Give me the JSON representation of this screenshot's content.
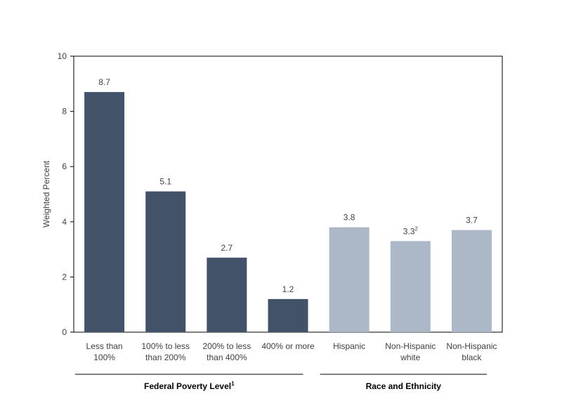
{
  "chart_data": {
    "type": "bar",
    "title": "",
    "ylabel": "Weighted Percent",
    "ylim": [
      0,
      10
    ],
    "yticks": [
      0,
      2,
      4,
      6,
      8,
      10
    ],
    "grid": false,
    "categories": [
      {
        "label_lines": [
          "Less than",
          "100%"
        ],
        "value": 8.7,
        "value_label": "8.7",
        "value_note": "",
        "group": 0
      },
      {
        "label_lines": [
          "100% to less",
          "than 200%"
        ],
        "value": 5.1,
        "value_label": "5.1",
        "value_note": "",
        "group": 0
      },
      {
        "label_lines": [
          "200% to less",
          "than 400%"
        ],
        "value": 2.7,
        "value_label": "2.7",
        "value_note": "",
        "group": 0
      },
      {
        "label_lines": [
          "400% or more"
        ],
        "value": 1.2,
        "value_label": "1.2",
        "value_note": "",
        "group": 0
      },
      {
        "label_lines": [
          "Hispanic"
        ],
        "value": 3.8,
        "value_label": "3.8",
        "value_note": "",
        "group": 1
      },
      {
        "label_lines": [
          "Non-Hispanic",
          "white"
        ],
        "value": 3.3,
        "value_label": "3.3",
        "value_note": "2",
        "group": 1
      },
      {
        "label_lines": [
          "Non-Hispanic",
          "black"
        ],
        "value": 3.7,
        "value_label": "3.7",
        "value_note": "",
        "group": 1
      }
    ],
    "groups": [
      {
        "name": "Federal Poverty Level",
        "note": "1",
        "color": "#425369"
      },
      {
        "name": "Race and Ethnicity",
        "note": "",
        "color": "#acb8c8"
      }
    ]
  }
}
